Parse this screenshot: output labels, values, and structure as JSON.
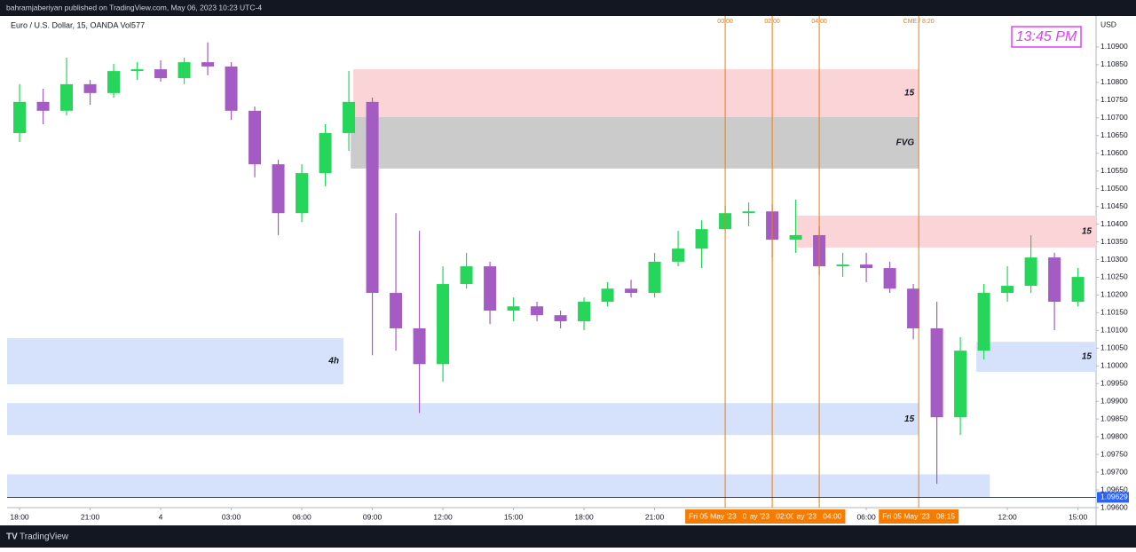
{
  "header": {
    "publisher": "bahramjaberiyan published on TradingView.com, May 06, 2023 10:23 UTC-4"
  },
  "chart_data": {
    "type": "candlestick",
    "title": "Euro / U.S. Dollar, 15, OANDA  Vol577",
    "currency_label": "USD",
    "up_color": "#26d65a",
    "down_color": "#a45cc4",
    "x": [
      0,
      1,
      2,
      3,
      4,
      5,
      6,
      7,
      8,
      9,
      10,
      11,
      12,
      13,
      14,
      15,
      16,
      17,
      18,
      19,
      20,
      21,
      22,
      23,
      24,
      25,
      26,
      27,
      28,
      29,
      30,
      31,
      32,
      33,
      34,
      35,
      36,
      37,
      38,
      39,
      40,
      41,
      42,
      43,
      44,
      45
    ],
    "open": [
      1.10657,
      1.10745,
      1.1072,
      1.10795,
      1.1077,
      1.10832,
      1.10837,
      1.10812,
      1.10857,
      1.10845,
      1.1072,
      1.10569,
      1.10431,
      1.10544,
      1.10657,
      1.10745,
      1.10206,
      1.10106,
      1.10005,
      1.10231,
      1.10281,
      1.10156,
      1.10168,
      1.10143,
      1.10126,
      1.10181,
      1.10218,
      1.10206,
      1.10294,
      1.10331,
      1.10386,
      1.10431,
      1.10436,
      1.10356,
      1.10369,
      1.10281,
      1.10286,
      1.10276,
      1.10218,
      1.10106,
      1.09855,
      1.10043,
      1.10206,
      1.10226,
      1.10306,
      1.10181
    ],
    "high": [
      1.10795,
      1.10782,
      1.1087,
      1.10807,
      1.10852,
      1.10857,
      1.10862,
      1.1087,
      1.10913,
      1.10857,
      1.10732,
      1.10582,
      1.10569,
      1.10682,
      1.10832,
      1.10757,
      1.10431,
      1.10381,
      1.10281,
      1.10319,
      1.10294,
      1.10193,
      1.10181,
      1.10156,
      1.10193,
      1.10236,
      1.10243,
      1.10319,
      1.10381,
      1.10411,
      1.10451,
      1.10461,
      1.10456,
      1.10469,
      1.10394,
      1.10319,
      1.10319,
      1.10294,
      1.10231,
      1.10181,
      1.10081,
      1.10231,
      1.10281,
      1.10369,
      1.10319,
      1.10276
    ],
    "low": [
      1.10632,
      1.10682,
      1.10707,
      1.10737,
      1.10757,
      1.10807,
      1.10802,
      1.10795,
      1.1082,
      1.10694,
      1.10532,
      1.10369,
      1.10406,
      1.10507,
      1.10607,
      1.1003,
      1.10043,
      1.09867,
      1.09955,
      1.10218,
      1.10118,
      1.10126,
      1.10126,
      1.10106,
      1.10101,
      1.10168,
      1.10193,
      1.10193,
      1.10281,
      1.10276,
      1.10381,
      1.10394,
      1.10306,
      1.10319,
      1.10256,
      1.10251,
      1.10236,
      1.10206,
      1.10075,
      1.09667,
      1.09805,
      1.10018,
      1.10181,
      1.10206,
      1.10101,
      1.10168
    ],
    "close": [
      1.10745,
      1.1072,
      1.10795,
      1.1077,
      1.10832,
      1.10837,
      1.10812,
      1.10857,
      1.10845,
      1.1072,
      1.10569,
      1.10431,
      1.10544,
      1.10657,
      1.10745,
      1.10206,
      1.10106,
      1.10005,
      1.10231,
      1.10281,
      1.10156,
      1.10168,
      1.10143,
      1.10126,
      1.10181,
      1.10218,
      1.10206,
      1.10294,
      1.10331,
      1.10386,
      1.10431,
      1.10436,
      1.10356,
      1.10369,
      1.10281,
      1.10286,
      1.10276,
      1.10218,
      1.10106,
      1.09855,
      1.10043,
      1.10206,
      1.10226,
      1.10306,
      1.10181,
      1.10251
    ],
    "xlim": [
      -0.53,
      45.77
    ],
    "ylim": [
      1.096,
      1.10985
    ],
    "xticks": [
      {
        "value": 0,
        "label": "18:00"
      },
      {
        "value": 3,
        "label": "21:00"
      },
      {
        "value": 6,
        "label": "4"
      },
      {
        "value": 9,
        "label": "03:00"
      },
      {
        "value": 12,
        "label": "06:00"
      },
      {
        "value": 15,
        "label": "09:00"
      },
      {
        "value": 18,
        "label": "12:00"
      },
      {
        "value": 21,
        "label": "15:00"
      },
      {
        "value": 24,
        "label": "18:00"
      },
      {
        "value": 27,
        "label": "21:00"
      },
      {
        "value": 36,
        "label": "06:00"
      },
      {
        "value": 42,
        "label": "12:00"
      },
      {
        "value": 45,
        "label": "15:00"
      }
    ],
    "yticks": [
      {
        "value": 1.109,
        "label": "1.10900"
      },
      {
        "value": 1.1085,
        "label": "1.10850"
      },
      {
        "value": 1.108,
        "label": "1.10800"
      },
      {
        "value": 1.1075,
        "label": "1.10750"
      },
      {
        "value": 1.107,
        "label": "1.10700"
      },
      {
        "value": 1.1065,
        "label": "1.10650"
      },
      {
        "value": 1.106,
        "label": "1.10600"
      },
      {
        "value": 1.1055,
        "label": "1.10550"
      },
      {
        "value": 1.105,
        "label": "1.10500"
      },
      {
        "value": 1.1045,
        "label": "1.10450"
      },
      {
        "value": 1.104,
        "label": "1.10400"
      },
      {
        "value": 1.1035,
        "label": "1.10350"
      },
      {
        "value": 1.103,
        "label": "1.10300"
      },
      {
        "value": 1.1025,
        "label": "1.10250"
      },
      {
        "value": 1.102,
        "label": "1.10200"
      },
      {
        "value": 1.1015,
        "label": "1.10150"
      },
      {
        "value": 1.101,
        "label": "1.10100"
      },
      {
        "value": 1.1005,
        "label": "1.10050"
      },
      {
        "value": 1.1,
        "label": "1.10000"
      },
      {
        "value": 1.0995,
        "label": "1.09950"
      },
      {
        "value": 1.099,
        "label": "1.09900"
      },
      {
        "value": 1.0985,
        "label": "1.09850"
      },
      {
        "value": 1.098,
        "label": "1.09800"
      },
      {
        "value": 1.0975,
        "label": "1.09750"
      },
      {
        "value": 1.097,
        "label": "1.09700"
      },
      {
        "value": 1.0965,
        "label": "1.09650"
      },
      {
        "value": 1.096,
        "label": "1.09600"
      }
    ],
    "zones": [
      {
        "x0": 14.19,
        "x1": 38.23,
        "top": 1.10837,
        "bottom": 1.10702,
        "color": "#fbd4d7",
        "label": "15"
      },
      {
        "x0": 14.08,
        "x1": 38.23,
        "top": 1.10702,
        "bottom": 1.10557,
        "color": "#cbcbcb",
        "label": "FVG"
      },
      {
        "x0": 33.02,
        "x1": 45.77,
        "top": 1.10424,
        "bottom": 1.10334,
        "color": "#fbd4d7",
        "label": "15"
      },
      {
        "x0": -0.53,
        "x1": 13.77,
        "top": 1.10078,
        "bottom": 1.09948,
        "color": "#d6e2fb",
        "label": "4h"
      },
      {
        "x0": -0.53,
        "x1": 38.23,
        "top": 1.09895,
        "bottom": 1.09805,
        "color": "#d6e2fb",
        "label": "15"
      },
      {
        "x0": 40.68,
        "x1": 45.77,
        "top": 1.10068,
        "bottom": 1.09983,
        "color": "#d6e2fb",
        "label": "15"
      },
      {
        "x0": -0.53,
        "x1": 41.25,
        "top": 1.09694,
        "bottom": 1.09629,
        "color": "#d6e2fb"
      }
    ],
    "vlines": [
      {
        "x": 30,
        "top_label": "00:00",
        "bottom_label": "Fri 05 May '23   00:00"
      },
      {
        "x": 32,
        "top_label": "02:00",
        "bottom_label": "ay '23   02:00"
      },
      {
        "x": 34,
        "top_label": "04:00",
        "bottom_label": "ay '23   04:00"
      },
      {
        "x": 38.23,
        "top_label": "CME / 8:20",
        "bottom_label": "Fri 05 May '23   08:15"
      }
    ],
    "vline_color": "#f57c00",
    "current_price": {
      "value": 1.09629,
      "label": "1.09629"
    }
  },
  "clock_label": "13:45 PM",
  "footer": {
    "brand": "TradingView"
  }
}
